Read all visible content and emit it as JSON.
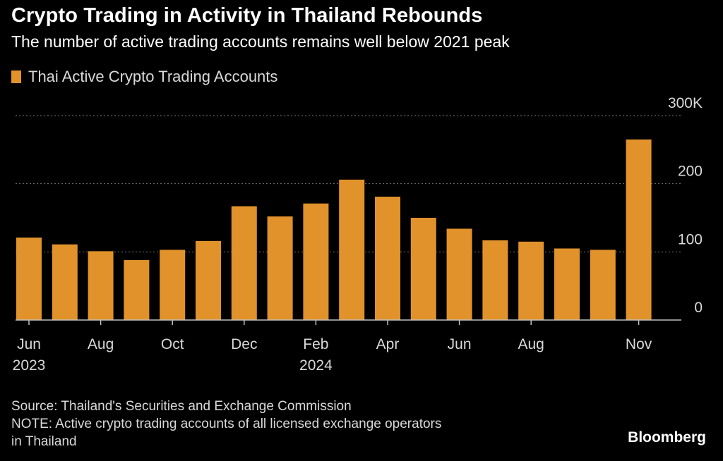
{
  "header": {
    "title": "Crypto Trading in Activity in Thailand Rebounds",
    "subtitle": "The number of active trading accounts remains well below 2021 peak"
  },
  "colors": {
    "background": "#000000",
    "bar": "#e1922b",
    "grid": "#7a7a7a",
    "axis": "#bfbfbf",
    "text": "#d9d9d9"
  },
  "chart_data": {
    "type": "bar",
    "series": [
      {
        "name": "Thai Active Crypto Trading Accounts",
        "values": [
          121,
          111,
          101,
          88,
          103,
          116,
          167,
          152,
          171,
          206,
          181,
          150,
          134,
          117,
          115,
          105,
          103,
          265
        ]
      }
    ],
    "categories": [
      "Jun 2023",
      "Jul 2023",
      "Aug 2023",
      "Sep 2023",
      "Oct 2023",
      "Nov 2023",
      "Dec 2023",
      "Jan 2024",
      "Feb 2024",
      "Mar 2024",
      "Apr 2024",
      "May 2024",
      "Jun 2024",
      "Jul 2024",
      "Aug 2024",
      "Sep 2024",
      "Oct 2024",
      "Nov 2024"
    ],
    "x_ticks": [
      {
        "index": 0,
        "label": "Jun",
        "sublabel": "2023"
      },
      {
        "index": 2,
        "label": "Aug",
        "sublabel": ""
      },
      {
        "index": 4,
        "label": "Oct",
        "sublabel": ""
      },
      {
        "index": 6,
        "label": "Dec",
        "sublabel": ""
      },
      {
        "index": 8,
        "label": "Feb",
        "sublabel": "2024"
      },
      {
        "index": 10,
        "label": "Apr",
        "sublabel": ""
      },
      {
        "index": 12,
        "label": "Jun",
        "sublabel": ""
      },
      {
        "index": 14,
        "label": "Aug",
        "sublabel": ""
      },
      {
        "index": 17,
        "label": "Nov",
        "sublabel": ""
      }
    ],
    "y_ticks": [
      {
        "value": 0,
        "label": "0"
      },
      {
        "value": 100,
        "label": "100"
      },
      {
        "value": 200,
        "label": "200"
      },
      {
        "value": 300,
        "label": "300K"
      }
    ],
    "ylim": [
      0,
      300
    ],
    "grid": true,
    "legend_position": "top-left",
    "y_axis_position": "right"
  },
  "footer": {
    "source": "Source: Thailand's Securities and Exchange Commission",
    "note_line1": "NOTE: Active crypto trading accounts of all licensed exchange operators",
    "note_line2": "in Thailand",
    "brand": "Bloomberg"
  }
}
